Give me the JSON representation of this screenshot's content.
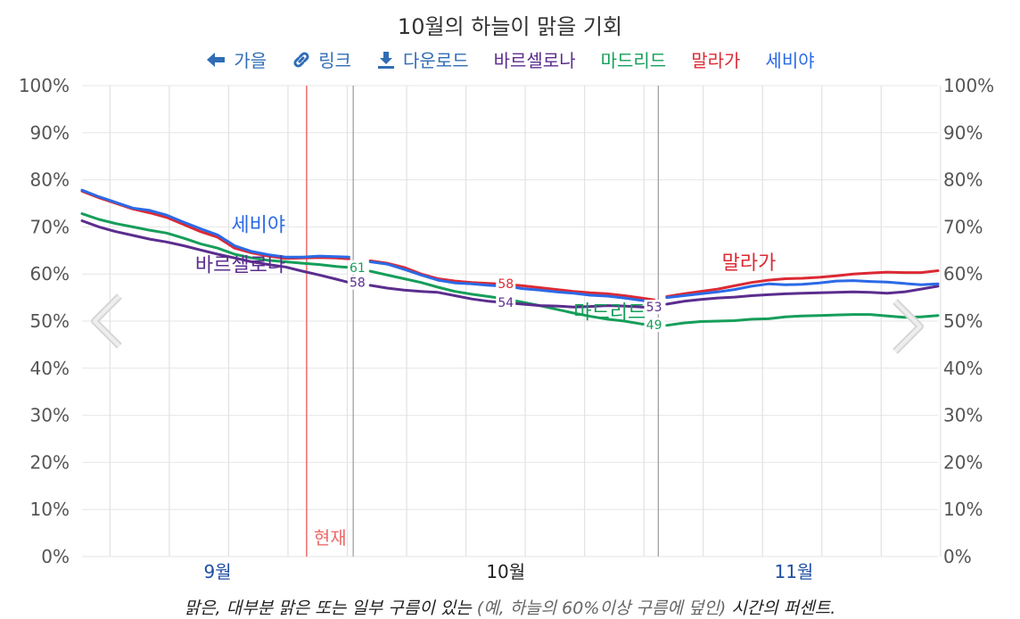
{
  "title": "10월의 하늘이 맑을 기회",
  "toolbar": {
    "prev_label": "가을",
    "link_label": "링크",
    "download_label": "다운로드",
    "legend": [
      {
        "name": "바르셀로나",
        "color": "#5b2d8e"
      },
      {
        "name": "마드리드",
        "color": "#169e5a"
      },
      {
        "name": "말라가",
        "color": "#dc2a34"
      },
      {
        "name": "세비야",
        "color": "#2b6ae6"
      }
    ]
  },
  "caption": {
    "part1": "맑은, 대부분 맑은",
    "part2": " 또는 일부 구름이 있는 ",
    "part3": "(예, 하늘의 60%이상 구름에 덮인)",
    "part4": " 시간의 퍼센트."
  },
  "chart_data": {
    "type": "line",
    "title": "10월의 하늘이 맑을 기회",
    "x_unit": "day index (0 = late August, ~Aug 22)",
    "xlim": [
      0,
      101
    ],
    "ylim": [
      0,
      100
    ],
    "y_ticks": [
      "0%",
      "10%",
      "20%",
      "30%",
      "40%",
      "50%",
      "60%",
      "70%",
      "80%",
      "90%",
      "100%"
    ],
    "x_month_labels": [
      {
        "label": "9월",
        "x": 16
      },
      {
        "label": "10월",
        "x": 50
      },
      {
        "label": "11월",
        "x": 84
      }
    ],
    "month_boundaries": [
      32,
      68
    ],
    "now_marker": {
      "label": "현재",
      "x": 26.5
    },
    "series": [
      {
        "name": "세비야",
        "color": "#2b6ae6",
        "segments": [
          [
            [
              0,
              77.8
            ],
            [
              2,
              76.4
            ],
            [
              4,
              75.2
            ],
            [
              6,
              74.0
            ],
            [
              8,
              73.5
            ],
            [
              10,
              72.5
            ],
            [
              12,
              71.0
            ],
            [
              14,
              69.6
            ],
            [
              16,
              68.3
            ],
            [
              18,
              66.0
            ],
            [
              20,
              64.8
            ],
            [
              22,
              64.1
            ],
            [
              24,
              63.6
            ],
            [
              26,
              63.6
            ],
            [
              28,
              63.8
            ],
            [
              30,
              63.7
            ],
            [
              31.5,
              63.6
            ]
          ],
          [
            [
              34,
              62.6
            ],
            [
              36,
              62.1
            ],
            [
              38,
              61.0
            ],
            [
              40,
              59.8
            ],
            [
              42,
              58.7
            ],
            [
              44,
              58.1
            ],
            [
              46,
              57.9
            ],
            [
              48,
              57.6
            ],
            [
              50,
              57.4
            ],
            [
              52,
              56.9
            ],
            [
              54,
              56.6
            ],
            [
              56,
              56.2
            ],
            [
              58,
              55.9
            ],
            [
              60,
              55.5
            ],
            [
              62,
              55.3
            ],
            [
              64,
              54.9
            ],
            [
              66,
              54.4
            ],
            [
              67.5,
              54.1
            ]
          ],
          [
            [
              69,
              55.0
            ],
            [
              71,
              55.4
            ],
            [
              73,
              55.8
            ],
            [
              75,
              56.2
            ],
            [
              77,
              56.7
            ],
            [
              79,
              57.4
            ],
            [
              81,
              57.9
            ],
            [
              83,
              57.7
            ],
            [
              85,
              57.8
            ],
            [
              87,
              58.1
            ],
            [
              89,
              58.5
            ],
            [
              91,
              58.6
            ],
            [
              93,
              58.4
            ],
            [
              95,
              58.3
            ],
            [
              97,
              58.0
            ],
            [
              99,
              57.7
            ],
            [
              101,
              57.9
            ]
          ]
        ]
      },
      {
        "name": "말라가",
        "color": "#dc2a34",
        "segments": [
          [
            [
              0,
              77.6
            ],
            [
              2,
              76.2
            ],
            [
              4,
              75.0
            ],
            [
              6,
              73.8
            ],
            [
              8,
              73.0
            ],
            [
              10,
              72.0
            ],
            [
              12,
              70.5
            ],
            [
              14,
              69.0
            ],
            [
              16,
              67.8
            ],
            [
              18,
              65.5
            ],
            [
              20,
              64.5
            ],
            [
              22,
              63.8
            ],
            [
              24,
              63.3
            ],
            [
              26,
              63.4
            ],
            [
              28,
              63.5
            ],
            [
              30,
              63.4
            ],
            [
              31.5,
              63.2
            ]
          ],
          [
            [
              34,
              62.8
            ],
            [
              36,
              62.3
            ],
            [
              38,
              61.4
            ],
            [
              40,
              60.0
            ],
            [
              42,
              59.0
            ],
            [
              44,
              58.5
            ],
            [
              46,
              58.2
            ],
            [
              48,
              58.0
            ],
            [
              50,
              57.8
            ],
            [
              52,
              57.5
            ],
            [
              54,
              57.1
            ],
            [
              56,
              56.7
            ],
            [
              58,
              56.3
            ],
            [
              60,
              56.0
            ],
            [
              62,
              55.8
            ],
            [
              64,
              55.4
            ],
            [
              66,
              54.9
            ],
            [
              67.5,
              54.5
            ]
          ],
          [
            [
              69,
              55.2
            ],
            [
              71,
              55.8
            ],
            [
              73,
              56.3
            ],
            [
              75,
              56.8
            ],
            [
              77,
              57.5
            ],
            [
              79,
              58.2
            ],
            [
              81,
              58.7
            ],
            [
              83,
              59.0
            ],
            [
              85,
              59.1
            ],
            [
              87,
              59.3
            ],
            [
              89,
              59.6
            ],
            [
              91,
              60.0
            ],
            [
              93,
              60.2
            ],
            [
              95,
              60.4
            ],
            [
              97,
              60.3
            ],
            [
              99,
              60.3
            ],
            [
              101,
              60.7
            ]
          ]
        ]
      },
      {
        "name": "마드리드",
        "color": "#169e5a",
        "segments": [
          [
            [
              0,
              72.8
            ],
            [
              2,
              71.6
            ],
            [
              4,
              70.7
            ],
            [
              6,
              70.0
            ],
            [
              8,
              69.3
            ],
            [
              10,
              68.7
            ],
            [
              12,
              67.6
            ],
            [
              14,
              66.4
            ],
            [
              16,
              65.5
            ],
            [
              18,
              64.2
            ],
            [
              20,
              63.4
            ],
            [
              22,
              62.9
            ],
            [
              24,
              62.6
            ],
            [
              26,
              62.3
            ],
            [
              28,
              62.0
            ],
            [
              30,
              61.6
            ],
            [
              31.5,
              61.4
            ]
          ],
          [
            [
              34,
              60.6
            ],
            [
              36,
              59.8
            ],
            [
              38,
              59.0
            ],
            [
              40,
              58.2
            ],
            [
              42,
              57.2
            ],
            [
              44,
              56.3
            ],
            [
              46,
              55.7
            ],
            [
              48,
              55.2
            ],
            [
              50,
              54.7
            ],
            [
              52,
              54.0
            ],
            [
              54,
              53.3
            ],
            [
              56,
              52.5
            ],
            [
              58,
              51.7
            ],
            [
              60,
              51.0
            ],
            [
              62,
              50.4
            ],
            [
              64,
              50.0
            ],
            [
              66,
              49.4
            ],
            [
              67.5,
              49.2
            ]
          ],
          [
            [
              69,
              49.1
            ],
            [
              71,
              49.6
            ],
            [
              73,
              49.9
            ],
            [
              75,
              50.0
            ],
            [
              77,
              50.1
            ],
            [
              79,
              50.4
            ],
            [
              81,
              50.5
            ],
            [
              83,
              50.9
            ],
            [
              85,
              51.1
            ],
            [
              87,
              51.2
            ],
            [
              89,
              51.3
            ],
            [
              91,
              51.4
            ],
            [
              93,
              51.4
            ],
            [
              95,
              51.1
            ],
            [
              97,
              50.8
            ],
            [
              99,
              50.9
            ],
            [
              101,
              51.2
            ]
          ]
        ]
      },
      {
        "name": "바르셀로나",
        "color": "#5b2d8e",
        "segments": [
          [
            [
              0,
              71.3
            ],
            [
              2,
              70.0
            ],
            [
              4,
              69.0
            ],
            [
              6,
              68.2
            ],
            [
              8,
              67.4
            ],
            [
              10,
              66.8
            ],
            [
              12,
              66.0
            ],
            [
              14,
              65.1
            ],
            [
              16,
              64.2
            ],
            [
              18,
              63.4
            ],
            [
              20,
              62.6
            ],
            [
              22,
              62.0
            ],
            [
              24,
              61.5
            ],
            [
              26,
              60.6
            ],
            [
              28,
              59.8
            ],
            [
              30,
              58.9
            ],
            [
              31.5,
              58.2
            ]
          ],
          [
            [
              34,
              57.6
            ],
            [
              36,
              57.0
            ],
            [
              38,
              56.6
            ],
            [
              40,
              56.3
            ],
            [
              42,
              56.1
            ],
            [
              44,
              55.4
            ],
            [
              46,
              54.7
            ],
            [
              48,
              54.2
            ],
            [
              50,
              53.9
            ],
            [
              52,
              53.6
            ],
            [
              54,
              53.3
            ],
            [
              56,
              53.2
            ],
            [
              58,
              53.0
            ],
            [
              60,
              53.1
            ],
            [
              62,
              53.3
            ],
            [
              64,
              53.2
            ],
            [
              66,
              53.0
            ],
            [
              67.5,
              52.9
            ]
          ],
          [
            [
              69,
              53.6
            ],
            [
              71,
              54.2
            ],
            [
              73,
              54.6
            ],
            [
              75,
              54.9
            ],
            [
              77,
              55.1
            ],
            [
              79,
              55.4
            ],
            [
              81,
              55.6
            ],
            [
              83,
              55.8
            ],
            [
              85,
              55.9
            ],
            [
              87,
              56.0
            ],
            [
              89,
              56.1
            ],
            [
              91,
              56.2
            ],
            [
              93,
              56.1
            ],
            [
              95,
              55.9
            ],
            [
              97,
              56.2
            ],
            [
              99,
              56.8
            ],
            [
              101,
              57.4
            ]
          ]
        ]
      }
    ],
    "value_labels": [
      {
        "text": "61",
        "x": 32.5,
        "y": 61.4,
        "series": "마드리드"
      },
      {
        "text": "58",
        "x": 32.5,
        "y": 58.2,
        "series": "바르셀로나"
      },
      {
        "text": "58",
        "x": 50,
        "y": 58,
        "series": "말라가"
      },
      {
        "text": "54",
        "x": 50,
        "y": 54,
        "series": "바르셀로나"
      },
      {
        "text": "53",
        "x": 67.5,
        "y": 53,
        "series": "바르셀로나"
      },
      {
        "text": "49",
        "x": 67.5,
        "y": 49.2,
        "series": "마드리드"
      }
    ],
    "series_labels": [
      {
        "text": "세비야",
        "x": 24,
        "y": 69,
        "series": "세비야"
      },
      {
        "text": "바르셀로나",
        "x": 24,
        "y": 60.5,
        "series": "바르셀로나"
      },
      {
        "text": "마드리드",
        "x": 58,
        "y": 50.5,
        "series": "마드리드"
      },
      {
        "text": "말라가",
        "x": 75.5,
        "y": 61,
        "series": "말라가"
      }
    ]
  }
}
